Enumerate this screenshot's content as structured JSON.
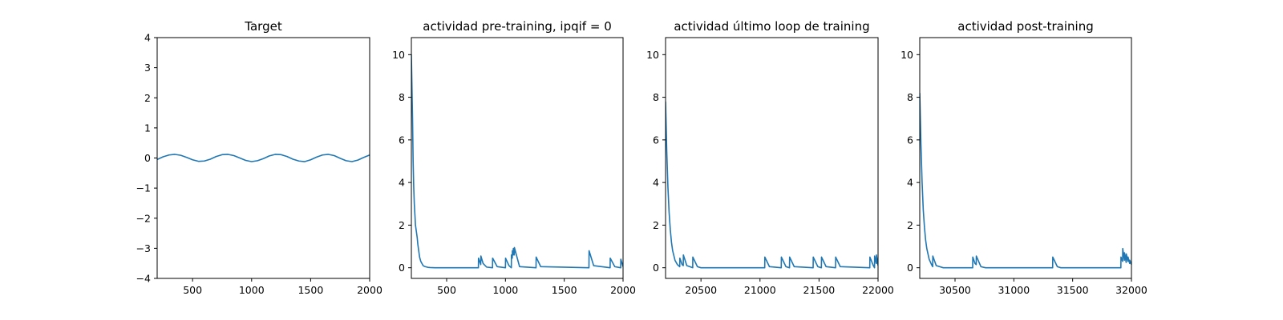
{
  "chart_data": [
    {
      "type": "line",
      "title": "Target",
      "xlabel": "",
      "ylabel": "",
      "xlim": [
        200,
        2000
      ],
      "ylim": [
        -4,
        4
      ],
      "xticks": [
        500,
        1000,
        1500,
        2000
      ],
      "yticks": [
        -4,
        -3,
        -2,
        -1,
        0,
        1,
        2,
        3,
        4
      ],
      "grid": false,
      "color": "#1f77b4",
      "series": [
        {
          "x": [
            200,
            250,
            300,
            350,
            400,
            450,
            500,
            550,
            600,
            650,
            700,
            750,
            800,
            850,
            900,
            950,
            1000,
            1050,
            1100,
            1150,
            1200,
            1250,
            1300,
            1350,
            1400,
            1450,
            1500,
            1550,
            1600,
            1650,
            1700,
            1750,
            1800,
            1850,
            1900,
            1950,
            2000
          ],
          "y": [
            -0.05,
            0.04,
            0.1,
            0.12,
            0.09,
            0.02,
            -0.06,
            -0.11,
            -0.1,
            -0.04,
            0.05,
            0.11,
            0.12,
            0.08,
            0.0,
            -0.08,
            -0.12,
            -0.09,
            -0.02,
            0.07,
            0.12,
            0.11,
            0.05,
            -0.04,
            -0.1,
            -0.12,
            -0.06,
            0.03,
            0.1,
            0.12,
            0.08,
            -0.01,
            -0.09,
            -0.12,
            -0.07,
            0.02,
            0.1
          ]
        }
      ]
    },
    {
      "type": "line",
      "title": "actividad pre-training, ipqif = 0",
      "xlabel": "",
      "ylabel": "",
      "xlim": [
        200,
        2000
      ],
      "ylim": [
        -0.5,
        10.8
      ],
      "xticks": [
        500,
        1000,
        1500,
        2000
      ],
      "yticks": [
        0,
        2,
        4,
        6,
        8,
        10
      ],
      "grid": false,
      "color": "#1f77b4",
      "series": [
        {
          "x": [
            200,
            205,
            210,
            215,
            220,
            225,
            230,
            235,
            240,
            245,
            250,
            255,
            260,
            265,
            270,
            275,
            280,
            290,
            300,
            310,
            320,
            340,
            360,
            400,
            500,
            600,
            700,
            770,
            771,
            790,
            791,
            810,
            840,
            890,
            891,
            930,
            1000,
            1001,
            1030,
            1050,
            1051,
            1058,
            1059,
            1066,
            1067,
            1075,
            1076,
            1120,
            1260,
            1261,
            1300,
            1710,
            1711,
            1750,
            1890,
            1891,
            1930,
            1980,
            1981,
            2000
          ],
          "y": [
            10.0,
            8.5,
            7.0,
            5.0,
            3.8,
            3.0,
            2.5,
            2.0,
            1.8,
            1.6,
            1.4,
            1.1,
            0.9,
            0.7,
            0.5,
            0.4,
            0.3,
            0.2,
            0.1,
            0.07,
            0.05,
            0.02,
            0.01,
            0.0,
            0.0,
            0.0,
            0.0,
            0.0,
            0.45,
            0.15,
            0.55,
            0.2,
            0.03,
            0.0,
            0.45,
            0.05,
            0.0,
            0.45,
            0.1,
            0.0,
            0.6,
            0.45,
            0.8,
            0.6,
            0.9,
            0.6,
            0.95,
            0.05,
            0.0,
            0.5,
            0.05,
            0.0,
            0.8,
            0.1,
            0.0,
            0.45,
            0.05,
            0.0,
            0.4,
            0.05
          ]
        }
      ]
    },
    {
      "type": "line",
      "title": "actividad último loop de training",
      "xlabel": "",
      "ylabel": "",
      "xlim": [
        20200,
        22000
      ],
      "ylim": [
        -0.5,
        10.8
      ],
      "xticks": [
        20500,
        21000,
        21500,
        22000
      ],
      "yticks": [
        0,
        2,
        4,
        6,
        8,
        10
      ],
      "grid": false,
      "color": "#1f77b4",
      "series": [
        {
          "x": [
            20200,
            20210,
            20220,
            20230,
            20240,
            20250,
            20260,
            20280,
            20300,
            20320,
            20321,
            20340,
            20350,
            20351,
            20380,
            20430,
            20431,
            20470,
            20500,
            21040,
            21041,
            21080,
            21180,
            21181,
            21220,
            21250,
            21251,
            21290,
            21450,
            21451,
            21490,
            21520,
            21521,
            21560,
            21640,
            21641,
            21680,
            21930,
            21931,
            21960,
            21970,
            21971,
            21985,
            21986,
            22000
          ],
          "y": [
            7.8,
            5.5,
            3.8,
            2.6,
            1.8,
            1.2,
            0.8,
            0.35,
            0.15,
            0.05,
            0.45,
            0.15,
            0.1,
            0.6,
            0.1,
            0.0,
            0.5,
            0.05,
            0.0,
            0.0,
            0.5,
            0.05,
            0.0,
            0.5,
            0.05,
            0.0,
            0.5,
            0.05,
            0.0,
            0.5,
            0.05,
            0.0,
            0.5,
            0.05,
            0.0,
            0.5,
            0.05,
            0.0,
            0.5,
            0.1,
            0.0,
            0.55,
            0.2,
            0.6,
            0.1
          ]
        }
      ]
    },
    {
      "type": "line",
      "title": "actividad post-training",
      "xlabel": "",
      "ylabel": "",
      "xlim": [
        30200,
        32000
      ],
      "ylim": [
        -0.5,
        10.8
      ],
      "xticks": [
        30500,
        31000,
        31500,
        32000
      ],
      "yticks": [
        0,
        2,
        4,
        6,
        8,
        10
      ],
      "grid": false,
      "color": "#1f77b4",
      "series": [
        {
          "x": [
            30200,
            30210,
            30220,
            30230,
            30240,
            30250,
            30260,
            30280,
            30300,
            30310,
            30311,
            30340,
            30400,
            30650,
            30651,
            30670,
            30680,
            30681,
            30720,
            30760,
            31330,
            31331,
            31370,
            31400,
            31910,
            31911,
            31925,
            31926,
            31940,
            31941,
            31955,
            31956,
            31970,
            31971,
            31985,
            31986,
            32000
          ],
          "y": [
            8.2,
            5.8,
            4.0,
            2.7,
            1.9,
            1.3,
            0.9,
            0.4,
            0.15,
            0.05,
            0.55,
            0.1,
            0.0,
            0.0,
            0.5,
            0.2,
            0.15,
            0.55,
            0.05,
            0.0,
            0.0,
            0.5,
            0.05,
            0.0,
            0.0,
            0.5,
            0.3,
            0.9,
            0.35,
            0.7,
            0.25,
            0.65,
            0.3,
            0.5,
            0.2,
            0.35,
            0.15
          ]
        }
      ]
    }
  ]
}
